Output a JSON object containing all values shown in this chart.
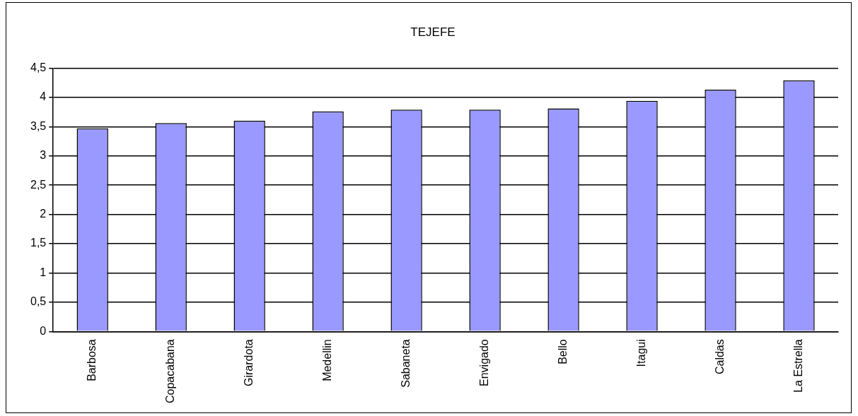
{
  "chart_data": {
    "type": "bar",
    "title": "TEJEFE",
    "categories": [
      "Barbosa",
      "Copacabana",
      "Girardota",
      "Medellin",
      "Sabaneta",
      "Envigado",
      "Bello",
      "Itagui",
      "Caldas",
      "La Estrella"
    ],
    "values": [
      3.47,
      3.56,
      3.6,
      3.76,
      3.79,
      3.79,
      3.81,
      3.94,
      4.13,
      4.29
    ],
    "color": "#9999ff",
    "ylim": [
      0,
      4.5
    ],
    "yticks": [
      {
        "value": 0,
        "label": "0"
      },
      {
        "value": 0.5,
        "label": "0,5"
      },
      {
        "value": 1,
        "label": "1"
      },
      {
        "value": 1.5,
        "label": "1,5"
      },
      {
        "value": 2,
        "label": "2"
      },
      {
        "value": 2.5,
        "label": "2,5"
      },
      {
        "value": 3,
        "label": "3"
      },
      {
        "value": 3.5,
        "label": "3,5"
      },
      {
        "value": 4,
        "label": "4"
      },
      {
        "value": 4.5,
        "label": "4,5"
      }
    ],
    "grid": "y",
    "legend": false
  }
}
